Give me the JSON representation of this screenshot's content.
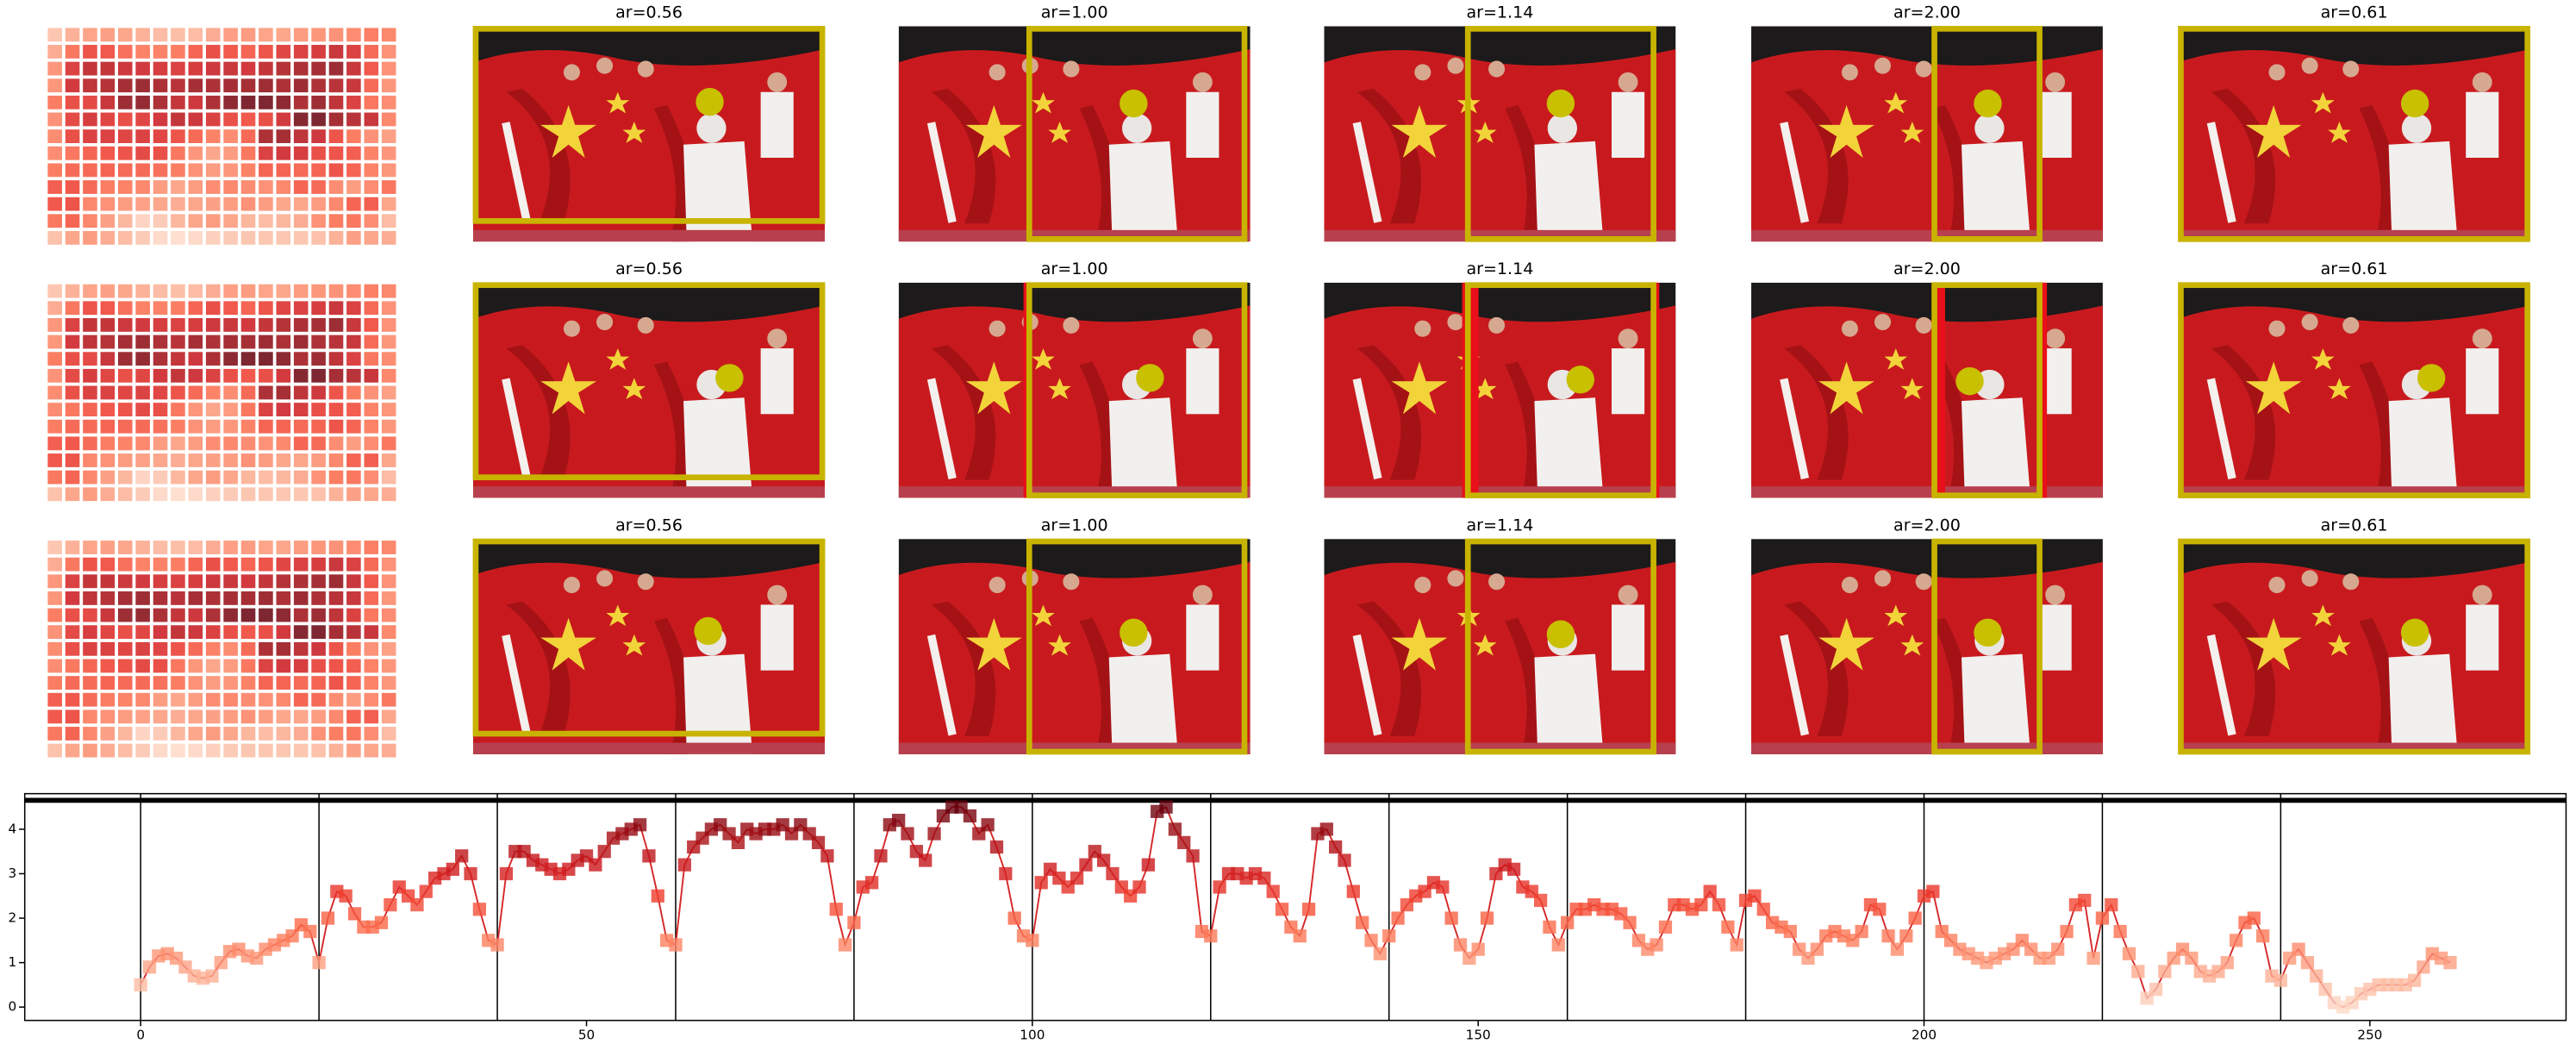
{
  "chart_data": [
    {
      "type": "image-grid",
      "rows": [
        {
          "titles": [
            "ar=0.56",
            "ar=1.00",
            "ar=1.14",
            "ar=2.00",
            "ar=0.61"
          ]
        },
        {
          "titles": [
            "ar=0.56",
            "ar=1.00",
            "ar=1.14",
            "ar=2.00",
            "ar=0.61"
          ]
        },
        {
          "titles": [
            "ar=0.56",
            "ar=1.00",
            "ar=1.14",
            "ar=2.00",
            "ar=0.61"
          ]
        }
      ]
    },
    {
      "type": "line",
      "colormap": "Reds",
      "xlim": [
        -13,
        272
      ],
      "ylim": [
        -0.3,
        4.8
      ],
      "xticks": [
        0,
        50,
        100,
        150,
        200,
        250
      ],
      "yticks": [
        0,
        1,
        2,
        3,
        4
      ],
      "vlines": [
        0,
        20,
        40,
        60,
        80,
        100,
        120,
        140,
        160,
        180,
        200,
        220,
        240
      ],
      "hline": 4.65,
      "x": [
        0,
        1,
        2,
        3,
        4,
        5,
        6,
        7,
        8,
        9,
        10,
        11,
        12,
        13,
        14,
        15,
        16,
        17,
        18,
        19,
        20,
        21,
        22,
        23,
        24,
        25,
        26,
        27,
        28,
        29,
        30,
        31,
        32,
        33,
        34,
        35,
        36,
        37,
        38,
        39,
        40,
        41,
        42,
        43,
        44,
        45,
        46,
        47,
        48,
        49,
        50,
        51,
        52,
        53,
        54,
        55,
        56,
        57,
        58,
        59,
        60,
        61,
        62,
        63,
        64,
        65,
        66,
        67,
        68,
        69,
        70,
        71,
        72,
        73,
        74,
        75,
        76,
        77,
        78,
        79,
        80,
        81,
        82,
        83,
        84,
        85,
        86,
        87,
        88,
        89,
        90,
        91,
        92,
        93,
        94,
        95,
        96,
        97,
        98,
        99,
        100,
        101,
        102,
        103,
        104,
        105,
        106,
        107,
        108,
        109,
        110,
        111,
        112,
        113,
        114,
        115,
        116,
        117,
        118,
        119,
        120,
        121,
        122,
        123,
        124,
        125,
        126,
        127,
        128,
        129,
        130,
        131,
        132,
        133,
        134,
        135,
        136,
        137,
        138,
        139,
        140,
        141,
        142,
        143,
        144,
        145,
        146,
        147,
        148,
        149,
        150,
        151,
        152,
        153,
        154,
        155,
        156,
        157,
        158,
        159,
        160,
        161,
        162,
        163,
        164,
        165,
        166,
        167,
        168,
        169,
        170,
        171,
        172,
        173,
        174,
        175,
        176,
        177,
        178,
        179,
        180,
        181,
        182,
        183,
        184,
        185,
        186,
        187,
        188,
        189,
        190,
        191,
        192,
        193,
        194,
        195,
        196,
        197,
        198,
        199,
        200,
        201,
        202,
        203,
        204,
        205,
        206,
        207,
        208,
        209,
        210,
        211,
        212,
        213,
        214,
        215,
        216,
        217,
        218,
        219,
        220,
        221,
        222,
        223,
        224,
        225,
        226,
        227,
        228,
        229,
        230,
        231,
        232,
        233,
        234,
        235,
        236,
        237,
        238,
        239,
        240,
        241,
        242,
        243,
        244,
        245,
        246,
        247,
        248,
        249,
        250,
        251,
        252,
        253,
        254,
        255,
        256,
        257,
        258,
        259
      ],
      "series": [
        {
          "color": "#d62728",
          "values": [
            0.5,
            0.9,
            1.15,
            1.2,
            1.1,
            0.9,
            0.7,
            0.65,
            0.7,
            1.0,
            1.25,
            1.3,
            1.15,
            1.1,
            1.3,
            1.4,
            1.5,
            1.6,
            1.85,
            1.7,
            1.0,
            2.0,
            2.6,
            2.5,
            2.1,
            1.8,
            1.8,
            1.9,
            2.3,
            2.7,
            2.5,
            2.3,
            2.6,
            2.9,
            3.0,
            3.1,
            3.4,
            3.0,
            2.2,
            1.5,
            1.4,
            3.0,
            3.5,
            3.5,
            3.3,
            3.2,
            3.1,
            3.0,
            3.1,
            3.3,
            3.4,
            3.2,
            3.5,
            3.8,
            3.9,
            4.0,
            4.1,
            3.4,
            2.5,
            1.5,
            1.4,
            3.2,
            3.6,
            3.8,
            4.0,
            4.1,
            3.9,
            3.7,
            4.0,
            3.9,
            4.0,
            4.0,
            4.1,
            3.9,
            4.1,
            3.9,
            3.7,
            3.4,
            2.2,
            1.4,
            1.9,
            2.7,
            2.8,
            3.4,
            4.1,
            4.2,
            3.9,
            3.5,
            3.3,
            3.9,
            4.3,
            4.5,
            4.5,
            4.3,
            3.9,
            4.1,
            3.6,
            3.0,
            2.0,
            1.6,
            1.5,
            2.8,
            3.1,
            2.9,
            2.7,
            2.9,
            3.2,
            3.5,
            3.3,
            3.0,
            2.7,
            2.5,
            2.7,
            3.2,
            4.4,
            4.5,
            4.0,
            3.7,
            3.4,
            1.7,
            1.6,
            2.7,
            3.0,
            3.0,
            2.9,
            3.0,
            2.9,
            2.6,
            2.2,
            1.8,
            1.6,
            2.2,
            3.9,
            4.0,
            3.6,
            3.3,
            2.6,
            1.9,
            1.5,
            1.2,
            1.6,
            2.0,
            2.3,
            2.5,
            2.6,
            2.8,
            2.7,
            2.0,
            1.4,
            1.1,
            1.3,
            2.0,
            3.0,
            3.2,
            3.1,
            2.7,
            2.6,
            2.4,
            1.8,
            1.4,
            1.9,
            2.2,
            2.2,
            2.3,
            2.2,
            2.2,
            2.1,
            1.9,
            1.5,
            1.3,
            1.4,
            1.8,
            2.3,
            2.3,
            2.2,
            2.3,
            2.6,
            2.3,
            1.8,
            1.4,
            2.4,
            2.5,
            2.2,
            1.9,
            1.8,
            1.7,
            1.3,
            1.1,
            1.3,
            1.6,
            1.7,
            1.6,
            1.5,
            1.7,
            2.3,
            2.2,
            1.6,
            1.3,
            1.6,
            2.0,
            2.5,
            2.6,
            1.7,
            1.5,
            1.3,
            1.2,
            1.1,
            1.0,
            1.1,
            1.2,
            1.3,
            1.5,
            1.3,
            1.1,
            1.1,
            1.3,
            1.7,
            2.3,
            2.4,
            1.1,
            2.0,
            2.3,
            1.7,
            1.2,
            0.8,
            0.2,
            0.4,
            0.8,
            1.1,
            1.3,
            1.1,
            0.8,
            0.7,
            0.8,
            1.0,
            1.5,
            1.9,
            2.0,
            1.6,
            0.7,
            0.6,
            1.1,
            1.3,
            1.0,
            0.7,
            0.4,
            0.1,
            0.0,
            0.1,
            0.3,
            0.4,
            0.5,
            0.5,
            0.5,
            0.5,
            0.6,
            0.9,
            1.2,
            1.1,
            1.0
          ]
        }
      ]
    }
  ]
}
